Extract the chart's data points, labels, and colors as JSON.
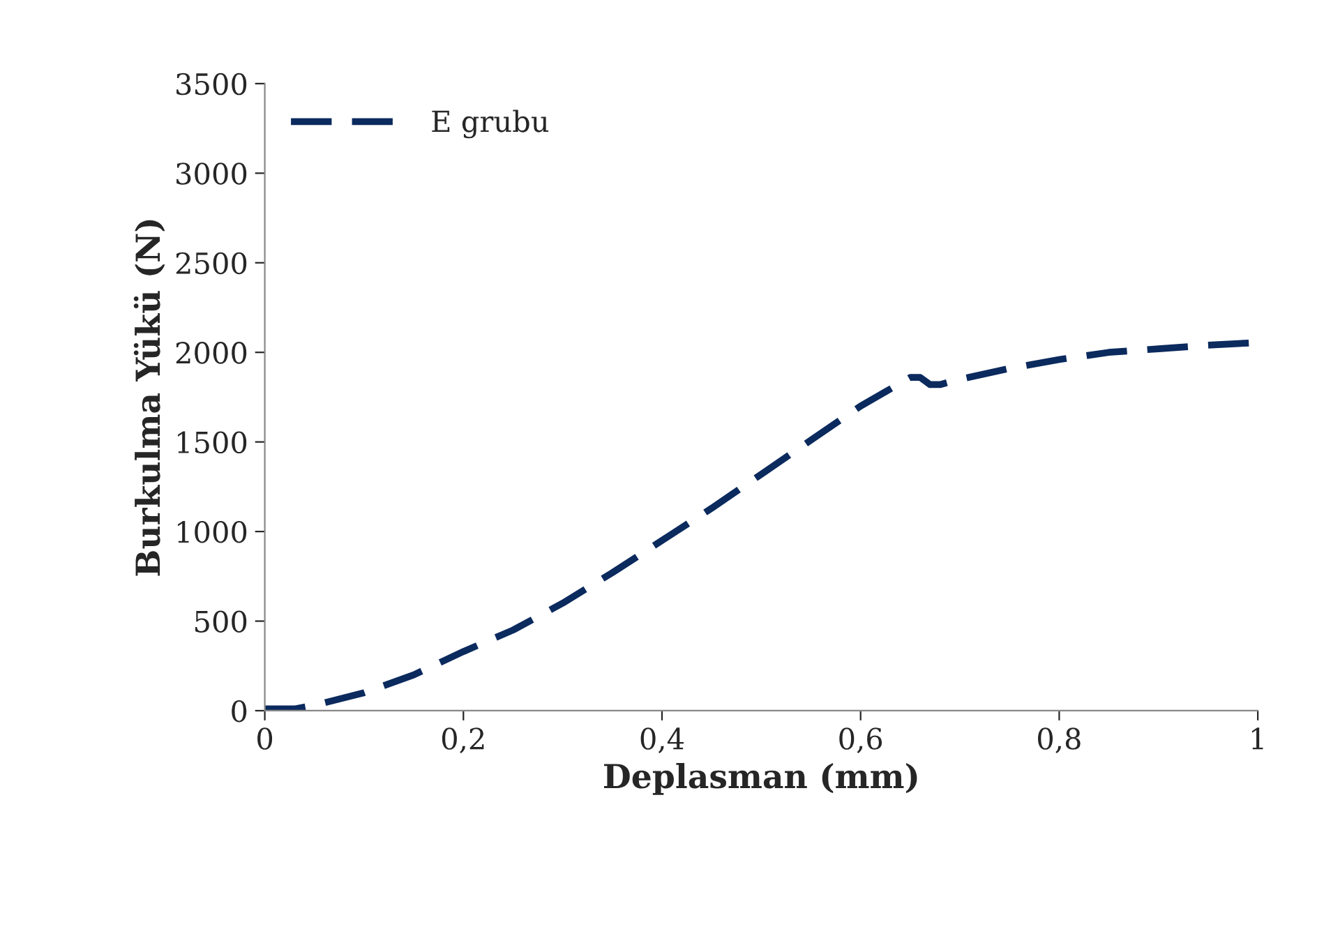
{
  "chart_data": {
    "type": "line",
    "xlabel": "Deplasman (mm)",
    "ylabel": "Burkulma Yükü (N)",
    "xlim": [
      0,
      1
    ],
    "xticks": [
      0,
      {
        "value": 0.2,
        "label": "0,2"
      },
      {
        "value": 0.4,
        "label": "0,4"
      },
      {
        "value": 0.6,
        "label": "0,6"
      },
      {
        "value": 0.8,
        "label": "0,8"
      },
      1
    ],
    "ylim": [
      0,
      3500
    ],
    "yticks": [
      0,
      500,
      1000,
      1500,
      2000,
      2500,
      3000,
      3500
    ],
    "grid": false,
    "legend": "top left",
    "line_style": "dashed",
    "marker": "none",
    "series": [
      {
        "name": "E grubu",
        "color": "#0b2a5e",
        "x": [
          0,
          0.03,
          0.05,
          0.1,
          0.15,
          0.2,
          0.25,
          0.3,
          0.35,
          0.4,
          0.45,
          0.5,
          0.55,
          0.6,
          0.65,
          0.66,
          0.67,
          0.68,
          0.7,
          0.75,
          0.8,
          0.85,
          0.9,
          0.95,
          1
        ],
        "values": [
          10,
          10,
          30,
          100,
          200,
          330,
          450,
          600,
          770,
          950,
          1130,
          1320,
          1510,
          1700,
          1860,
          1860,
          1820,
          1820,
          1850,
          1910,
          1960,
          2000,
          2020,
          2040,
          2055
        ]
      }
    ]
  }
}
